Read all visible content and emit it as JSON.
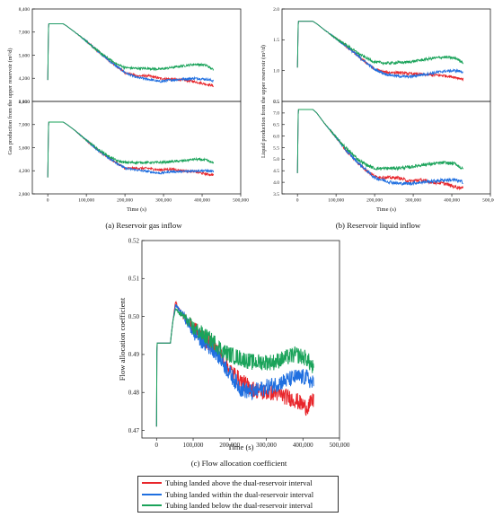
{
  "colors": {
    "above": "#e8262b",
    "within": "#1f6fe0",
    "below": "#1aa35a"
  },
  "legend": [
    {
      "label": "Tubing landed above the dual-reservoir interval",
      "series": "above"
    },
    {
      "label": "Tubing landed within the dual-reservoir interval",
      "series": "within"
    },
    {
      "label": "Tubing landed below the dual-reservoir interval",
      "series": "below"
    }
  ],
  "captions": {
    "a": "(a) Reservoir gas inflow",
    "b": "(b) Reservoir liquid inflow",
    "c": "(c) Flow allocation coefficient"
  },
  "chart_data": [
    {
      "id": "a",
      "type": "line",
      "panels": 2,
      "xlabel": "Time (s)",
      "ylabel": "Gas production from the upper reservoir (m³/d)",
      "x_ticks": [
        "0",
        "100,000",
        "200,000",
        "300,000",
        "400,000",
        "500,000"
      ],
      "xlim": [
        -40000,
        500000
      ],
      "y_ticks_top": [
        "2,800",
        "4,200",
        "5,600",
        "7,000",
        "8,400"
      ],
      "ylim_top": [
        2800,
        8400
      ],
      "y_ticks_bottom": [
        "2,800",
        "4,200",
        "5,600",
        "7,000",
        "8,400"
      ],
      "ylim_bottom": [
        2800,
        8400
      ],
      "x": [
        0,
        2000,
        40000,
        50000,
        70000,
        100000,
        130000,
        160000,
        180000,
        200000,
        230000,
        260000,
        290000,
        320000,
        350000,
        380000,
        410000,
        430000
      ],
      "series": [
        {
          "key": "above",
          "top": [
            4100,
            7500,
            7500,
            7350,
            7000,
            6450,
            5850,
            5250,
            4900,
            4550,
            4350,
            4350,
            4200,
            4150,
            4100,
            4000,
            3850,
            3750
          ],
          "bottom": [
            3800,
            7150,
            7150,
            7000,
            6650,
            6050,
            5450,
            4950,
            4650,
            4350,
            4350,
            4350,
            4250,
            4300,
            4200,
            4150,
            4000,
            3950
          ]
        },
        {
          "key": "within",
          "top": [
            4100,
            7500,
            7500,
            7350,
            7000,
            6450,
            5850,
            5250,
            4900,
            4550,
            4250,
            4150,
            4000,
            4100,
            4150,
            4200,
            4150,
            4050
          ],
          "bottom": [
            3800,
            7150,
            7150,
            7000,
            6650,
            6050,
            5450,
            4950,
            4650,
            4350,
            4250,
            4150,
            4050,
            4150,
            4150,
            4200,
            4200,
            4150
          ]
        },
        {
          "key": "below",
          "top": [
            4100,
            7500,
            7500,
            7350,
            7000,
            6450,
            5850,
            5350,
            5050,
            4850,
            4800,
            4800,
            4750,
            4850,
            4950,
            5050,
            5000,
            4700
          ],
          "bottom": [
            3800,
            7150,
            7150,
            7000,
            6650,
            6050,
            5500,
            5050,
            4800,
            4700,
            4700,
            4700,
            4700,
            4750,
            4800,
            4900,
            4850,
            4650
          ]
        }
      ]
    },
    {
      "id": "b",
      "type": "line",
      "panels": 2,
      "xlabel": "Time (s)",
      "ylabel": "Liquid production from the upper reservoir (m³/d)",
      "x_ticks": [
        "0",
        "100,000",
        "200,000",
        "300,000",
        "400,000",
        "500,000"
      ],
      "xlim": [
        -40000,
        500000
      ],
      "y_ticks_top": [
        "0.5",
        "1.0",
        "1.5",
        "2.0"
      ],
      "ylim_top": [
        0.5,
        2.0
      ],
      "y_ticks_bottom": [
        "3.5",
        "4.0",
        "4.5",
        "5.0",
        "5.5",
        "6.0",
        "6.5",
        "7.0",
        "7.5"
      ],
      "ylim_bottom": [
        3.5,
        7.5
      ],
      "x": [
        0,
        2000,
        40000,
        50000,
        70000,
        100000,
        130000,
        160000,
        180000,
        200000,
        230000,
        260000,
        290000,
        320000,
        350000,
        380000,
        410000,
        430000
      ],
      "series": [
        {
          "key": "above",
          "top": [
            1.05,
            1.8,
            1.8,
            1.76,
            1.66,
            1.52,
            1.38,
            1.22,
            1.12,
            1.02,
            0.97,
            0.97,
            0.95,
            0.94,
            0.93,
            0.92,
            0.89,
            0.86
          ],
          "bottom": [
            4.4,
            7.15,
            7.15,
            7.0,
            6.55,
            5.95,
            5.3,
            4.8,
            4.5,
            4.25,
            4.2,
            4.2,
            4.05,
            4.1,
            4.0,
            3.95,
            3.8,
            3.75
          ]
        },
        {
          "key": "within",
          "top": [
            1.05,
            1.8,
            1.8,
            1.76,
            1.66,
            1.52,
            1.38,
            1.22,
            1.12,
            1.02,
            0.94,
            0.91,
            0.9,
            0.93,
            0.96,
            0.99,
            1.0,
            0.98
          ],
          "bottom": [
            4.4,
            7.15,
            7.15,
            7.0,
            6.55,
            5.95,
            5.3,
            4.8,
            4.5,
            4.2,
            4.05,
            3.95,
            3.95,
            4.0,
            4.05,
            4.1,
            4.1,
            4.0
          ]
        },
        {
          "key": "below",
          "top": [
            1.05,
            1.8,
            1.8,
            1.76,
            1.66,
            1.52,
            1.4,
            1.27,
            1.2,
            1.14,
            1.12,
            1.13,
            1.14,
            1.17,
            1.2,
            1.22,
            1.2,
            1.13
          ],
          "bottom": [
            4.4,
            7.15,
            7.15,
            7.0,
            6.55,
            5.95,
            5.4,
            4.95,
            4.75,
            4.6,
            4.6,
            4.62,
            4.65,
            4.75,
            4.8,
            4.85,
            4.8,
            4.55
          ]
        }
      ]
    },
    {
      "id": "c",
      "type": "line",
      "panels": 1,
      "xlabel": "Time (s)",
      "ylabel": "Flow allocation coefficient",
      "x_ticks": [
        "0",
        "100,000",
        "200,000",
        "300,000",
        "400,000",
        "500,000"
      ],
      "xlim": [
        -40000,
        500000
      ],
      "y_ticks": [
        "0.47",
        "0.48",
        "0.49",
        "0.50",
        "0.51",
        "0.52"
      ],
      "ylim": [
        0.468,
        0.52
      ],
      "x": [
        0,
        1000,
        38000,
        40000,
        45000,
        52000,
        60000,
        75000,
        100000,
        130000,
        160000,
        180000,
        200000,
        230000,
        260000,
        290000,
        320000,
        350000,
        380000,
        410000,
        430000
      ],
      "series": [
        {
          "key": "above",
          "values": [
            0.471,
            0.493,
            0.493,
            0.495,
            0.499,
            0.504,
            0.502,
            0.5,
            0.497,
            0.494,
            0.492,
            0.489,
            0.486,
            0.483,
            0.481,
            0.48,
            0.48,
            0.479,
            0.478,
            0.476,
            0.478
          ]
        },
        {
          "key": "within",
          "values": [
            0.471,
            0.493,
            0.493,
            0.495,
            0.499,
            0.503,
            0.502,
            0.5,
            0.496,
            0.493,
            0.491,
            0.488,
            0.485,
            0.481,
            0.48,
            0.481,
            0.482,
            0.483,
            0.484,
            0.484,
            0.482
          ]
        },
        {
          "key": "below",
          "values": [
            0.471,
            0.493,
            0.493,
            0.495,
            0.499,
            0.502,
            0.501,
            0.5,
            0.497,
            0.495,
            0.493,
            0.491,
            0.49,
            0.489,
            0.488,
            0.488,
            0.488,
            0.489,
            0.49,
            0.489,
            0.486
          ]
        }
      ]
    }
  ]
}
